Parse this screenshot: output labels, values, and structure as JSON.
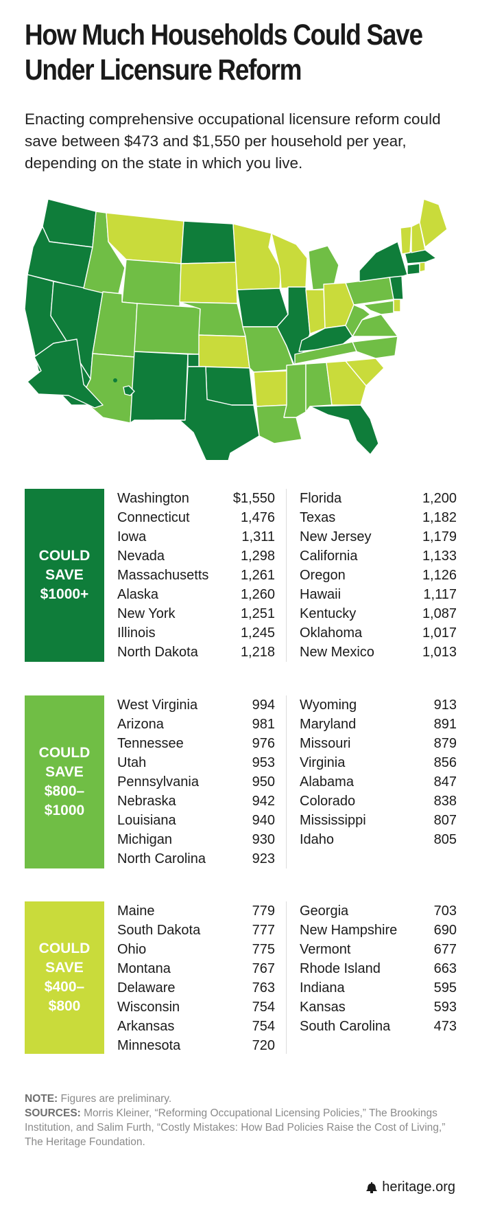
{
  "title_line1": "How Much Households Could Save",
  "title_line2": "Under Licensure Reform",
  "subtitle": "Enacting comprehensive occupational licensure reform could save between $473 and $1,550 per household per year, depending on the state in which you live.",
  "colors": {
    "tier1": "#0f7d3a",
    "tier2": "#70be45",
    "tier3": "#c9db3b"
  },
  "chart_data": {
    "type": "table",
    "groups": [
      {
        "label_lines": [
          "COULD",
          "SAVE",
          "$1000+"
        ],
        "color": "#0f7d3a",
        "left": [
          {
            "state": "Washington",
            "value": "$1,550"
          },
          {
            "state": "Connecticut",
            "value": "1,476"
          },
          {
            "state": "Iowa",
            "value": "1,311"
          },
          {
            "state": "Nevada",
            "value": "1,298"
          },
          {
            "state": "Massachusetts",
            "value": "1,261"
          },
          {
            "state": "Alaska",
            "value": "1,260"
          },
          {
            "state": "New York",
            "value": "1,251"
          },
          {
            "state": "Illinois",
            "value": "1,245"
          },
          {
            "state": "North Dakota",
            "value": "1,218"
          }
        ],
        "right": [
          {
            "state": "Florida",
            "value": "1,200"
          },
          {
            "state": "Texas",
            "value": "1,182"
          },
          {
            "state": "New Jersey",
            "value": "1,179"
          },
          {
            "state": "California",
            "value": "1,133"
          },
          {
            "state": "Oregon",
            "value": "1,126"
          },
          {
            "state": "Hawaii",
            "value": "1,117"
          },
          {
            "state": "Kentucky",
            "value": "1,087"
          },
          {
            "state": "Oklahoma",
            "value": "1,017"
          },
          {
            "state": "New Mexico",
            "value": "1,013"
          }
        ]
      },
      {
        "label_lines": [
          "COULD",
          "SAVE",
          "$800–",
          "$1000"
        ],
        "color": "#70be45",
        "left": [
          {
            "state": "West Virginia",
            "value": "994"
          },
          {
            "state": "Arizona",
            "value": "981"
          },
          {
            "state": "Tennessee",
            "value": "976"
          },
          {
            "state": "Utah",
            "value": "953"
          },
          {
            "state": "Pennsylvania",
            "value": "950"
          },
          {
            "state": "Nebraska",
            "value": "942"
          },
          {
            "state": "Louisiana",
            "value": "940"
          },
          {
            "state": "Michigan",
            "value": "930"
          },
          {
            "state": "North Carolina",
            "value": "923"
          }
        ],
        "right": [
          {
            "state": "Wyoming",
            "value": "913"
          },
          {
            "state": "Maryland",
            "value": "891"
          },
          {
            "state": "Missouri",
            "value": "879"
          },
          {
            "state": "Virginia",
            "value": "856"
          },
          {
            "state": "Alabama",
            "value": "847"
          },
          {
            "state": "Colorado",
            "value": "838"
          },
          {
            "state": "Mississippi",
            "value": "807"
          },
          {
            "state": "Idaho",
            "value": "805"
          }
        ]
      },
      {
        "label_lines": [
          "COULD",
          "SAVE",
          "$400–",
          "$800"
        ],
        "color": "#c9db3b",
        "left": [
          {
            "state": "Maine",
            "value": "779"
          },
          {
            "state": "South Dakota",
            "value": "777"
          },
          {
            "state": "Ohio",
            "value": "775"
          },
          {
            "state": "Montana",
            "value": "767"
          },
          {
            "state": "Delaware",
            "value": "763"
          },
          {
            "state": "Wisconsin",
            "value": "754"
          },
          {
            "state": "Arkansas",
            "value": "754"
          },
          {
            "state": "Minnesota",
            "value": "720"
          }
        ],
        "right": [
          {
            "state": "Georgia",
            "value": "703"
          },
          {
            "state": "New Hampshire",
            "value": "690"
          },
          {
            "state": "Vermont",
            "value": "677"
          },
          {
            "state": "Rhode Island",
            "value": "663"
          },
          {
            "state": "Indiana",
            "value": "595"
          },
          {
            "state": "Kansas",
            "value": "593"
          },
          {
            "state": "South Carolina",
            "value": "473"
          }
        ]
      }
    ]
  },
  "notes": {
    "note_label": "NOTE:",
    "note_text": "Figures are preliminary.",
    "sources_label": "SOURCES:",
    "sources_text": "Morris Kleiner, “Reforming Occupational Licensing Policies,” The Brookings Institution, and Salim Furth, “Costly Mistakes: How Bad Policies Raise the Cost of Living,” The Heritage Foundation."
  },
  "brand": {
    "text": "heritage.org",
    "icon": "liberty-bell-icon"
  }
}
